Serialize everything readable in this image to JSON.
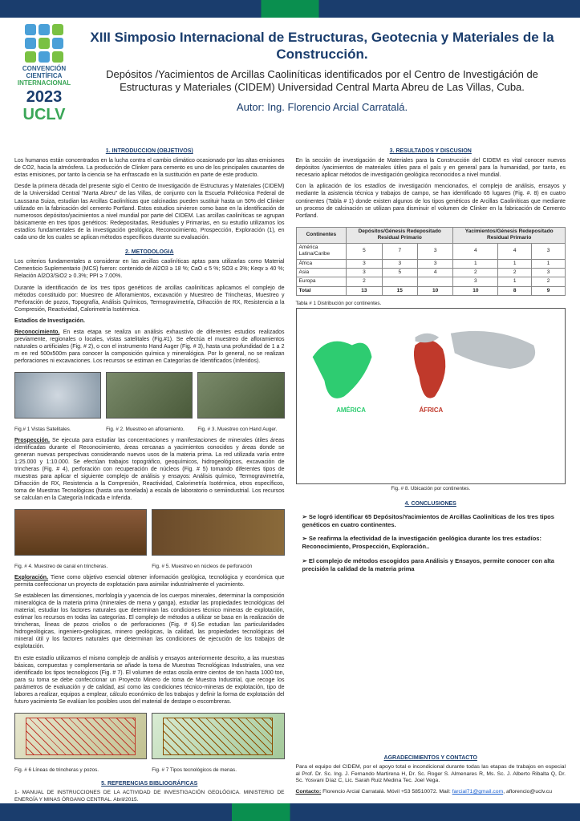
{
  "colors": {
    "primary_blue": "#1a3d6d",
    "accent_green": "#0a8f4f",
    "logo_green": "#3aa657",
    "text": "#222222",
    "link": "#1a5fd0"
  },
  "logo": {
    "line1": "CONVENCIÓN",
    "line2": "CIENTÍFICA",
    "line3": "INTERNACIONAL",
    "year": "2023",
    "uclv": "UCLV",
    "square_colors": [
      "#4aa0d8",
      "#4aa0d8",
      "#7ac143",
      "#4aa0d8",
      "#7ac143",
      "#4aa0d8",
      "#7ac143",
      "#4aa0d8",
      "#7ac143"
    ]
  },
  "header": {
    "title": "XIII Simposio Internacional de Estructuras, Geotecnia y Materiales de la Construcción.",
    "subtitle": "Depósitos /Yacimientos de Arcillas Caoliníticas identificados por el Centro de Investigáción de Estructuras y Materiales (CIDEM) Universidad Central Marta Abreu de Las Villas, Cuba.",
    "author": "Autor: Ing. Florencio Arcial Carratalá."
  },
  "sections": {
    "intro_title": "1. INTRODUCCION (OBJETIVOS)",
    "intro_p1": "Los humanos están concentrados en la lucha contra el cambio climático ocasionado por las altas emisiones de CO2, hacia la atmósfera. La producción de Clinker para cemento es uno de los principales causantes de estas emisiones, por tanto la ciencia se ha enfrascado en la sustitución en parte de este producto.",
    "intro_p2": "Desde la primera década del presente siglo el Centro de Investigación de Estructuras y Materiales (CIDEM) de la Universidad Central \"Marta Abreu\" de las Villas, de conjunto con la Escuela Politécnica Federal de Laussana Suiza, estudian las Arcillas Caoliníticas que calcinadas pueden sustituir hasta un 50% del Clinker utilizado en la fabricación del cemento Portland. Estos estudios sirvieron como base en la identificación de numerosos depósitos/yacimientos a nivel mundial por parte del CIDEM. Las arcillas caoliníticas se agrupan básicamente en tres tipos genéticos: Redepositadas, Residuales y Primarias, en su estudio utilizamos los estadíos fundamentales de la investigación geológica, Reconocimiento, Prospección, Exploración (1), en cada uno de los cuales se aplican métodos específicos durante su evaluación.",
    "metod_title": "2. METODOLOGIA",
    "metod_p1": "Los criterios fundamentales a considerar en las arcillas caoliníticas aptas para utilizarlas como Material Cementicio Suplementario (MCS) fueron: contenido de Al2O3 ≥ 18 %; CaO ≤ 5 %; SO3 ≤ 3%; Keqv ≥ 40 %; Relación Al2O3/SiO2 ≥ 0.3%; PPI ≥ 7.00%.",
    "metod_p2": "Durante la identificación de los tres tipos genéticos de arcillas caoliníticas aplicamos el complejo de métodos constituido por: Muestreo de Afloramientos, excavación y Muestreo de Trincheras, Muestreo y Perforación de pozos, Topografía, Análisis Químicos, Termogravimetría, Difracción de RX, Resistencia a la Compresión, Reactividad, Calorimetría Isotérmica.",
    "estadios_heading": "Estadíos de Investigación.",
    "recon_label": "Reconocimiento.",
    "recon_text": " En esta etapa se realiza un análisis exhaustivo de diferentes estudios realizados previamente, regionales o locales, vistas satelitales (Fig.#1). Se efectúa el muestreo de afloramientos naturales o artificiales (Fig. # 2), o con el instrumento Hand Auger (Fig. # 3), hasta una profundidad de 1 a 2 m en red 500x500m para conocer la composición química y mineralógica. Por lo general, no se realizan perforaciones ni excavaciones. Los recursos se estiman en Categorías de Identificados (Inferidos).",
    "cap1": "Fig.# 1 Vistas Satelitales.",
    "cap2": "Fig. # 2. Muestreo en afloramiento.",
    "cap3": "Fig. # 3. Muestreo con Hand Auger.",
    "prosp_label": "Prospección.",
    "prosp_text": " Se ejecuta para estudiar las concentraciones y manifestaciones de minerales útiles áreas identificadas durante el Reconocimiento, áreas cercanas a yacimientos conocidos y áreas donde se generan nuevas perspectivas considerando nuevos usos de la materia prima. La red utilizada varía entre 1:25.000 y 1:10.000. Se efectúan trabajos topográfico, geoquímicos, hidrogeológicos, excavación de trincheras (Fig. # 4), perforación con recuperación de núcleos (Fig. # 5) tomando diferentes tipos de muestras para aplicar el siguiente complejo de análisis y ensayos: Análisis químico, Termogravimetría, Difracción de RX, Resistencia a la Compresión, Reactividad, Calorimetría Isotérmica, otros específicos, toma de Muestras Tecnológicas (hasta una tonelada) a escala de laboratorio o semiindustrial. Los recursos se calculan en la Categoría Indicada e Inferida.",
    "cap4": "Fig. # 4. Muestreo de canal en trincheras.",
    "cap5": "Fig. # 5. Muestreo en núcleos de perforación",
    "explor_label": "Exploración.",
    "explor_text": " Tiene como objetivo esencial obtener información geológica, tecnológica y económica que permita confeccionar un proyecto de explotación para asimilar industrialmente el yacimiento.",
    "explor_p2": "Se establecen las dimensiones, morfología y yacencia de los cuerpos minerales, determinar la composición mineralógica de la materia prima (minerales de mena y ganga), estudiar las propiedades tecnológicas del material, estudiar los factores naturales que determinan las condiciones técnico mineras de explotación, estimar los recursos en todas las categorías. El complejo de métodos a utilizar se basa en la realización de trincheras, líneas de pozos criollos o de perforaciones (Fig. # 6).Se estudian las particularidades hidrogeológicas, ingeniero-geológicas, minero geológicas, la calidad, las propiedades tecnológicas del mineral útil y los factores naturales que determinan las condiciones de ejecución de los trabajos de explotación.",
    "explor_p3": "En este estadío utilizamos el mismo complejo de análisis y ensayos anteriormente descrito, a las muestras básicas, compuestas y complementaria se añade la toma de Muestras Tecnológicas Industriales, una vez identificado los tipos tecnológicos (Fig. # 7). El volumen de estas oscila entre cientos de ton hasta 1000 ton, para su toma se debe confeccionar un Proyecto Minero de toma de Muestra Industrial, que recoge los parámetros de evaluación y de calidad, así como las condiciones técnico-mineras de explotación, tipo de labores a realizar, equipos a emplear, cálculo económico de los trabajos y definir la forma de explotación del futuro yacimiento Se evalúan los posibles usos del material de destape o escombreras.",
    "cap6": "Fig. # 6 Líneas de trincheras y pozos.",
    "cap7": "Fig. # 7 Tipos tecnológicos de menas.",
    "refs_title": "5. REFERENCIAS BIBLIOGRÁFICAS",
    "ref1": "1- MANUAL DE INSTRUCCIONES DE LA ACTIVIDAD DE INVESTIGACIÓN GEOLÓGICA. MINISTERIO DE ENERGÍA Y MINAS ÓRGANO CENTRAL. Abril/2015.",
    "results_title": "3. RESULTADOS Y DISCUSION",
    "results_p1": "En la sección de investigación de Materiales para la Construcción del CIDEM es vital conocer nuevos depósitos /yacimientos de materiales útiles para el país y en general para la humanidad, por tanto, es necesario aplicar métodos de investigación geológica reconocidos a nivel mundial.",
    "results_p2": "Con la aplicación de los estadíos de investigación mencionados, el complejo de análisis, ensayos y mediante la asistencia técnica y trabajos de campo, se han identificado 65 lugares (Fig. #. 8) en cuatro continentes (Tabla # 1) donde existen algunos de los tipos genéticos de Arcillas Caoliníticas que mediante un proceso de calcinación se utilizan para disminuir el volumen de Clinker en la fabricación de Cemento Portland.",
    "table_caption": "Tabla # 1 Distribución por continentes.",
    "cap8": "Fig. # 8. Ubicación por continentes.",
    "concl_title": "4. CONCLUSIONES",
    "concl1": "Se logró identificar 65 Depósitos/Yacimientos de Arcillas Caoliníticas de los tres tipos genéticos en cuatro continentes.",
    "concl2": "Se reafirma la efectividad de la investigación geológica durante los tres estadíos: Reconocimiento, Prospección, Exploración..",
    "concl3": "El complejo de métodos escogidos para Análisis y Ensayos, permite conocer con alta precisión la calidad de la materia prima",
    "ack_title": "AGRADECIMIENTOS Y CONTACTO",
    "ack_p": "Para el equipo del CIDEM, por el apoyo total e incondicional durante todas las etapas de trabajos en especial al Prof. Dr. Sc. Ing. J. Fernando Martirena H, Dr. Sc. Roger S. Almenares R, Ms. Sc. J. Alberto Ribalta Q, Dr. Sc. Yosvani Díaz C, Lic. Sarah Ruiz Medina Tec. Joel Vega.",
    "contact_label": "Contacto:",
    "contact_text": " Florencio Arcial Carratalá. Móvil +53 58510072. Mail: ",
    "email1": "farcial71@gmail.com",
    "contact_text2": ", aflorencio@uclv.cu"
  },
  "table": {
    "head_continent": "Continentes",
    "head_group1": "Depósitos/Génesis Redepositado Residual Primario",
    "head_group2": "Yacimientos/Génesis Redepositado Residual Primario",
    "rows": [
      {
        "c": "América Latina/Caribe",
        "d": [
          5,
          7,
          3
        ],
        "y": [
          4,
          4,
          3
        ]
      },
      {
        "c": "África",
        "d": [
          3,
          3,
          3
        ],
        "y": [
          1,
          1,
          1
        ]
      },
      {
        "c": "Asia",
        "d": [
          3,
          5,
          4
        ],
        "y": [
          2,
          2,
          3
        ]
      },
      {
        "c": "Europa",
        "d": [
          2,
          "",
          ""
        ],
        "y": [
          3,
          1,
          2
        ]
      }
    ],
    "total_label": "Total",
    "totals_d": [
      13,
      15,
      10
    ],
    "totals_y": [
      10,
      8,
      9
    ]
  }
}
